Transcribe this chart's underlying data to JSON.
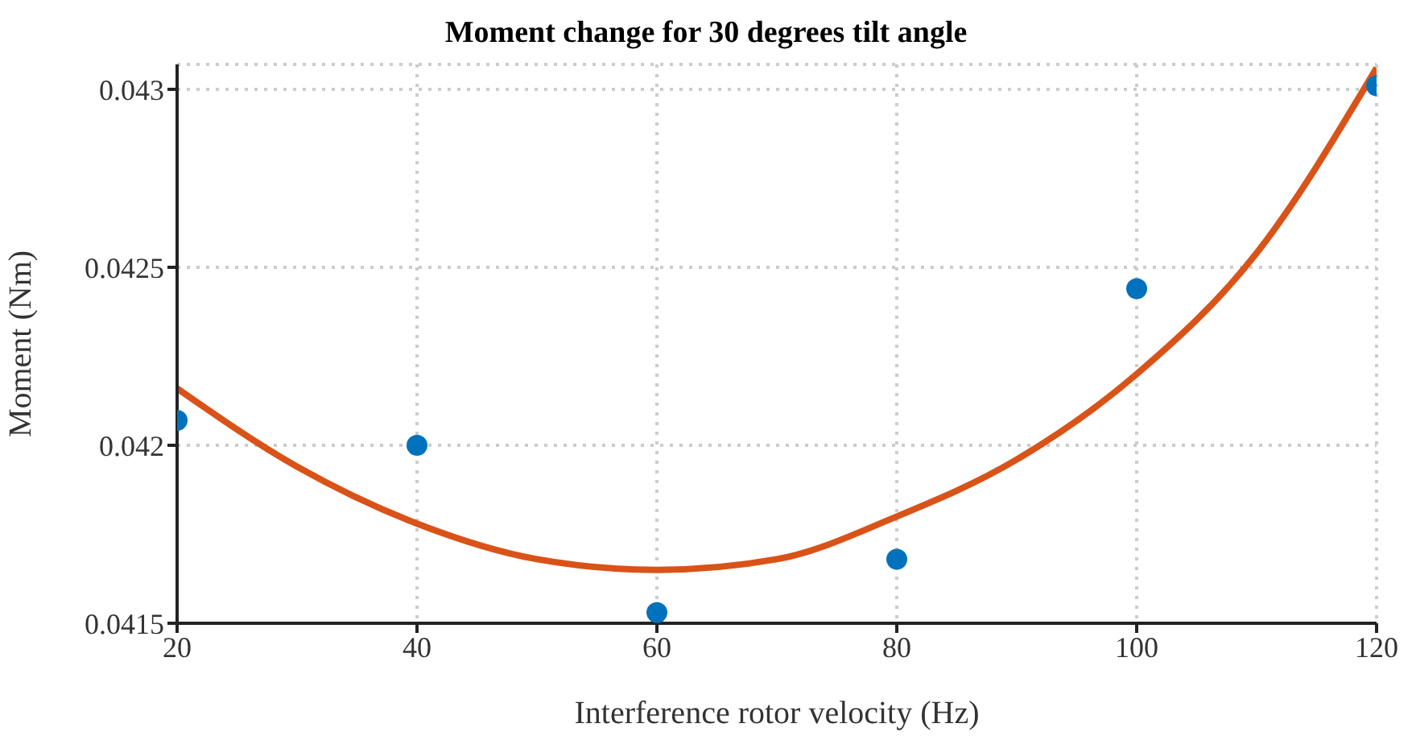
{
  "chart_data": {
    "type": "scatter",
    "title": "Moment change for 30 degrees tilt angle",
    "xlabel": "Interference rotor velocity (Hz)",
    "ylabel": "Moment (Nm)",
    "xlim": [
      20,
      120
    ],
    "xticks": [
      20,
      40,
      60,
      80,
      100,
      120
    ],
    "ylim": [
      0.0415,
      0.04307
    ],
    "yticks": [
      0.0415,
      0.042,
      0.0425,
      0.043
    ],
    "grid": true,
    "series": [
      {
        "color": "#0072bd",
        "marker": "circle",
        "x": [
          20,
          40,
          60,
          80,
          100,
          120
        ],
        "values": [
          0.04207,
          0.042,
          0.04153,
          0.04168,
          0.04244,
          0.04301
        ]
      },
      {
        "type": "line",
        "color": "#d95319",
        "marker": "none",
        "x": [
          20,
          30,
          40,
          50,
          60,
          70,
          80,
          90,
          100,
          110,
          120
        ],
        "values": [
          0.04216,
          0.04194,
          0.04178,
          0.04168,
          0.04165,
          0.04168,
          0.0418,
          0.04196,
          0.0422,
          0.04254,
          0.04306
        ]
      }
    ]
  }
}
